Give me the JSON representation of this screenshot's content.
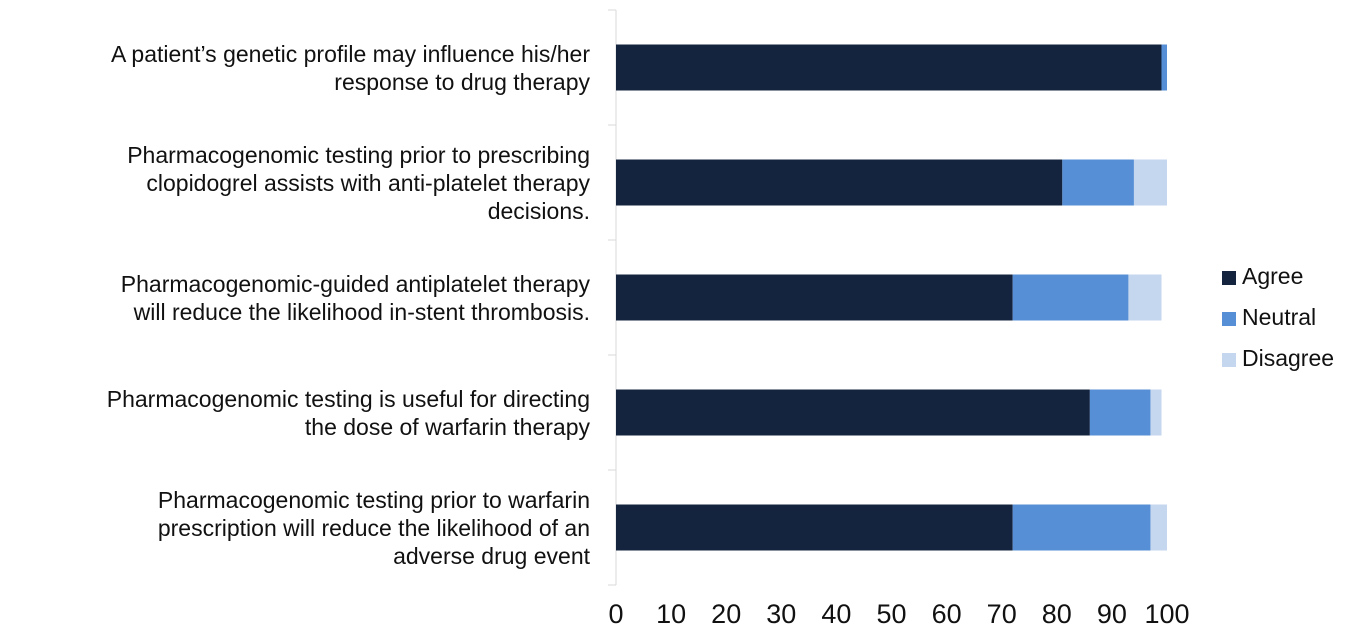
{
  "chart_data": {
    "type": "stacked_barh",
    "categories": [
      "A patient’s genetic profile may influence his/her\nresponse to drug therapy",
      "Pharmacogenomic testing prior to prescribing\nclopidogrel assists with anti-platelet therapy\ndecisions.",
      "Pharmacogenomic-guided antiplatelet therapy\nwill reduce the likelihood in-stent thrombosis.",
      "Pharmacogenomic testing is useful for directing\nthe dose of warfarin therapy",
      "Pharmacogenomic testing prior to warfarin\nprescription will reduce the likelihood of an\nadverse drug event"
    ],
    "series": [
      {
        "name": "Agree",
        "color": "#14243f",
        "values": [
          99,
          81,
          72,
          86,
          72
        ]
      },
      {
        "name": "Neutral",
        "color": "#568fd6",
        "values": [
          1,
          13,
          21,
          11,
          25
        ]
      },
      {
        "name": "Disagree",
        "color": "#c5d6ef",
        "values": [
          0,
          6,
          6,
          2,
          3
        ]
      }
    ],
    "xlim": [
      0,
      100
    ],
    "xticks": [
      0,
      10,
      20,
      30,
      40,
      50,
      60,
      70,
      80,
      90,
      100
    ],
    "legend": "right"
  }
}
